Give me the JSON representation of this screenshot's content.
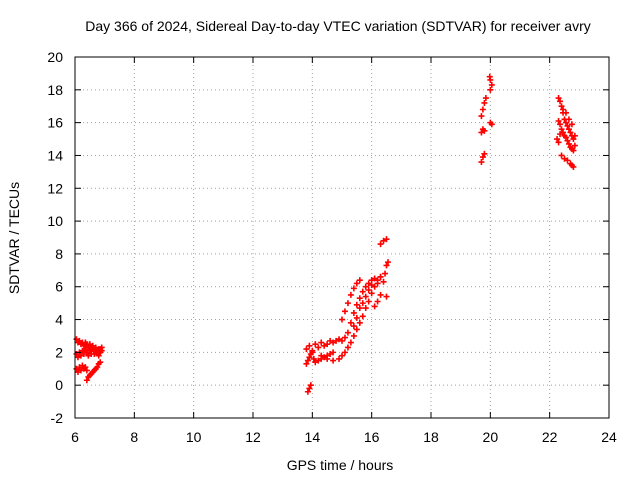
{
  "chart_data": {
    "type": "scatter",
    "title": "Day 366 of 2024, Sidereal Day-to-day VTEC variation (SDTVAR) for receiver avry",
    "xlabel": "GPS time / hours",
    "ylabel": "SDTVAR / TECUs",
    "xlim": [
      6,
      24
    ],
    "ylim": [
      -2,
      20
    ],
    "xticks": [
      6,
      8,
      10,
      12,
      14,
      16,
      18,
      20,
      22,
      24
    ],
    "yticks": [
      -2,
      0,
      2,
      4,
      6,
      8,
      10,
      12,
      14,
      16,
      18,
      20
    ],
    "grid": true,
    "marker": "+",
    "color": "#ff0000",
    "series": [
      {
        "name": "SDTVAR",
        "points": [
          [
            6.05,
            2.8
          ],
          [
            6.1,
            2.6
          ],
          [
            6.15,
            2.7
          ],
          [
            6.2,
            2.5
          ],
          [
            6.25,
            2.6
          ],
          [
            6.3,
            2.4
          ],
          [
            6.35,
            2.6
          ],
          [
            6.4,
            2.5
          ],
          [
            6.45,
            2.3
          ],
          [
            6.5,
            2.5
          ],
          [
            6.55,
            2.2
          ],
          [
            6.6,
            2.4
          ],
          [
            6.65,
            2.1
          ],
          [
            6.7,
            2.3
          ],
          [
            6.75,
            2.0
          ],
          [
            6.8,
            2.2
          ],
          [
            6.85,
            2.0
          ],
          [
            6.9,
            2.1
          ],
          [
            6.05,
            1.9
          ],
          [
            6.1,
            1.7
          ],
          [
            6.15,
            2.0
          ],
          [
            6.2,
            1.8
          ],
          [
            6.25,
            2.1
          ],
          [
            6.3,
            1.9
          ],
          [
            6.35,
            2.2
          ],
          [
            6.4,
            2.0
          ],
          [
            6.45,
            1.8
          ],
          [
            6.5,
            2.1
          ],
          [
            6.55,
            1.9
          ],
          [
            6.6,
            2.2
          ],
          [
            6.65,
            1.9
          ],
          [
            6.7,
            2.0
          ],
          [
            6.75,
            2.1
          ],
          [
            6.8,
            1.8
          ],
          [
            6.85,
            2.2
          ],
          [
            6.9,
            2.3
          ],
          [
            6.05,
            1.0
          ],
          [
            6.1,
            0.8
          ],
          [
            6.15,
            1.1
          ],
          [
            6.2,
            0.9
          ],
          [
            6.25,
            1.2
          ],
          [
            6.3,
            1.0
          ],
          [
            6.35,
            1.1
          ],
          [
            6.4,
            0.9
          ],
          [
            6.4,
            0.3
          ],
          [
            6.45,
            0.5
          ],
          [
            6.5,
            0.6
          ],
          [
            6.55,
            0.7
          ],
          [
            6.6,
            0.8
          ],
          [
            6.65,
            0.9
          ],
          [
            6.7,
            1.0
          ],
          [
            6.75,
            1.1
          ],
          [
            6.8,
            1.3
          ],
          [
            6.85,
            1.4
          ],
          [
            13.85,
            -0.4
          ],
          [
            13.9,
            -0.2
          ],
          [
            13.95,
            0.0
          ],
          [
            13.8,
            1.3
          ],
          [
            13.85,
            1.5
          ],
          [
            13.9,
            1.7
          ],
          [
            13.95,
            1.9
          ],
          [
            14.0,
            2.0
          ],
          [
            14.05,
            1.6
          ],
          [
            14.1,
            1.4
          ],
          [
            14.2,
            1.5
          ],
          [
            14.3,
            1.6
          ],
          [
            14.4,
            1.7
          ],
          [
            14.5,
            1.8
          ],
          [
            14.6,
            1.9
          ],
          [
            14.7,
            2.0
          ],
          [
            13.8,
            2.2
          ],
          [
            13.9,
            2.4
          ],
          [
            14.0,
            2.1
          ],
          [
            14.1,
            2.5
          ],
          [
            14.2,
            2.3
          ],
          [
            14.3,
            2.6
          ],
          [
            14.4,
            2.4
          ],
          [
            14.5,
            2.5
          ],
          [
            14.6,
            2.7
          ],
          [
            14.7,
            2.6
          ],
          [
            14.8,
            2.7
          ],
          [
            14.9,
            2.8
          ],
          [
            15.0,
            2.7
          ],
          [
            15.1,
            2.9
          ],
          [
            14.3,
            1.8
          ],
          [
            14.5,
            1.6
          ],
          [
            14.7,
            1.5
          ],
          [
            14.9,
            1.6
          ],
          [
            15.0,
            1.8
          ],
          [
            15.1,
            2.0
          ],
          [
            15.2,
            2.3
          ],
          [
            15.3,
            2.6
          ],
          [
            15.4,
            3.0
          ],
          [
            15.5,
            3.4
          ],
          [
            15.6,
            3.8
          ],
          [
            15.7,
            4.2
          ],
          [
            15.8,
            4.7
          ],
          [
            15.9,
            5.1
          ],
          [
            16.0,
            5.6
          ],
          [
            16.1,
            6.0
          ],
          [
            16.2,
            6.2
          ],
          [
            16.3,
            6.6
          ],
          [
            15.2,
            3.2
          ],
          [
            15.3,
            3.8
          ],
          [
            15.4,
            4.4
          ],
          [
            15.5,
            4.9
          ],
          [
            15.6,
            5.3
          ],
          [
            15.7,
            5.7
          ],
          [
            15.8,
            6.0
          ],
          [
            15.9,
            6.2
          ],
          [
            16.0,
            6.4
          ],
          [
            16.1,
            6.5
          ],
          [
            16.2,
            6.4
          ],
          [
            16.3,
            6.6
          ],
          [
            15.4,
            3.6
          ],
          [
            15.5,
            4.1
          ],
          [
            15.6,
            4.7
          ],
          [
            15.7,
            5.0
          ],
          [
            15.8,
            5.4
          ],
          [
            15.9,
            5.8
          ],
          [
            16.0,
            6.1
          ],
          [
            15.0,
            4.0
          ],
          [
            15.1,
            4.5
          ],
          [
            15.2,
            5.0
          ],
          [
            15.3,
            5.5
          ],
          [
            15.4,
            5.9
          ],
          [
            15.5,
            6.2
          ],
          [
            15.6,
            6.4
          ],
          [
            16.1,
            4.8
          ],
          [
            16.2,
            5.1
          ],
          [
            16.3,
            5.5
          ],
          [
            16.4,
            6.3
          ],
          [
            16.45,
            6.8
          ],
          [
            16.5,
            7.3
          ],
          [
            16.55,
            7.5
          ],
          [
            16.5,
            5.4
          ],
          [
            16.3,
            8.6
          ],
          [
            16.4,
            8.8
          ],
          [
            16.5,
            8.9
          ],
          [
            19.7,
            13.6
          ],
          [
            19.75,
            13.9
          ],
          [
            19.8,
            14.1
          ],
          [
            19.7,
            15.4
          ],
          [
            19.75,
            15.6
          ],
          [
            19.8,
            15.5
          ],
          [
            19.7,
            16.4
          ],
          [
            19.75,
            16.8
          ],
          [
            19.8,
            17.2
          ],
          [
            19.85,
            17.5
          ],
          [
            20.0,
            18.0
          ],
          [
            20.05,
            18.3
          ],
          [
            20.0,
            18.6
          ],
          [
            19.98,
            18.8
          ],
          [
            20.0,
            16.0
          ],
          [
            20.05,
            15.9
          ],
          [
            22.3,
            17.5
          ],
          [
            22.35,
            17.3
          ],
          [
            22.4,
            17.0
          ],
          [
            22.45,
            16.6
          ],
          [
            22.5,
            16.2
          ],
          [
            22.55,
            16.0
          ],
          [
            22.6,
            15.8
          ],
          [
            22.65,
            15.6
          ],
          [
            22.7,
            15.4
          ],
          [
            22.75,
            15.2
          ],
          [
            22.8,
            15.0
          ],
          [
            22.3,
            16.1
          ],
          [
            22.35,
            15.9
          ],
          [
            22.4,
            15.6
          ],
          [
            22.45,
            15.4
          ],
          [
            22.5,
            15.2
          ],
          [
            22.55,
            15.1
          ],
          [
            22.6,
            14.9
          ],
          [
            22.65,
            14.7
          ],
          [
            22.7,
            14.5
          ],
          [
            22.75,
            14.4
          ],
          [
            22.8,
            14.3
          ],
          [
            22.4,
            14.0
          ],
          [
            22.5,
            13.8
          ],
          [
            22.6,
            13.7
          ],
          [
            22.7,
            13.5
          ],
          [
            22.75,
            13.4
          ],
          [
            22.8,
            13.3
          ],
          [
            22.25,
            15.0
          ],
          [
            22.3,
            14.8
          ],
          [
            22.35,
            15.3
          ],
          [
            22.45,
            16.8
          ],
          [
            22.55,
            16.6
          ],
          [
            22.65,
            16.2
          ],
          [
            22.75,
            15.9
          ],
          [
            22.85,
            15.2
          ],
          [
            22.85,
            14.6
          ]
        ]
      }
    ]
  }
}
